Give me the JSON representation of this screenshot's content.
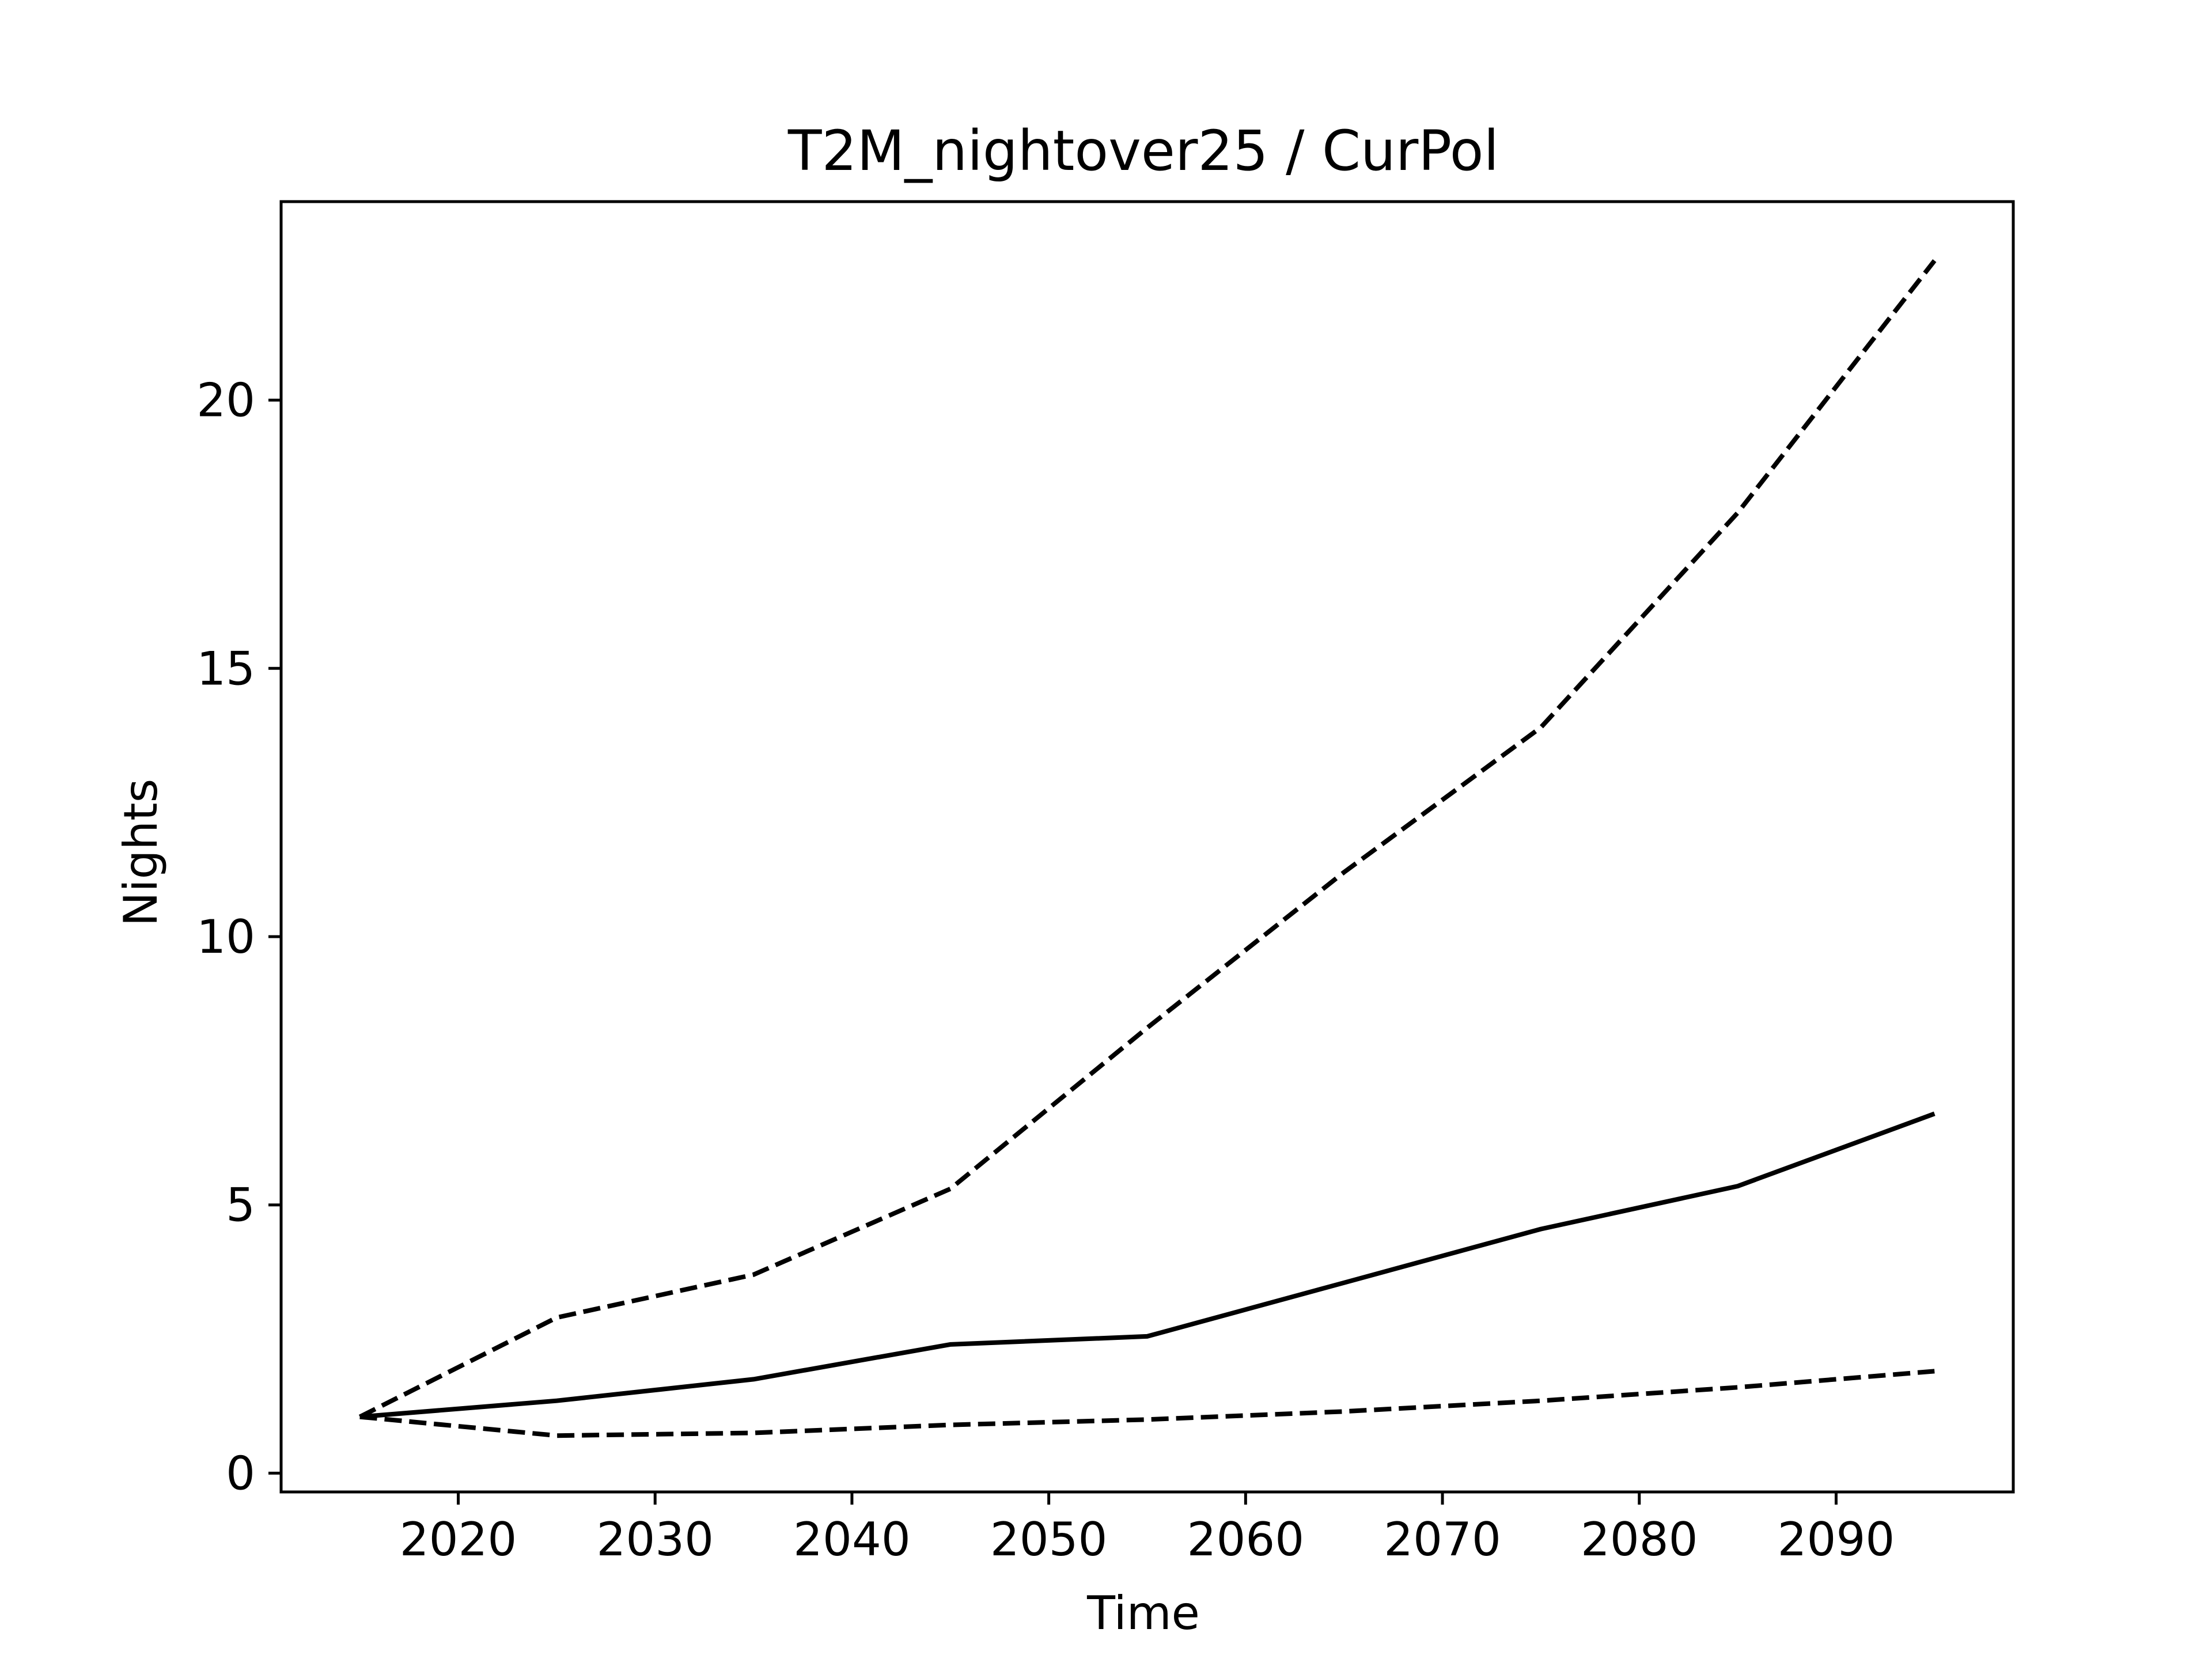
{
  "chart_data": {
    "type": "line",
    "title": "T2M_nightover25 / CurPol",
    "xlabel": "Time",
    "ylabel": "Nights",
    "x": [
      2015,
      2025,
      2035,
      2045,
      2055,
      2065,
      2075,
      2085,
      2095
    ],
    "series": [
      {
        "values": [
          1.05,
          1.35,
          1.75,
          2.4,
          2.55,
          3.55,
          4.55,
          5.35,
          6.7
        ],
        "style": "solid",
        "color": "#000000"
      },
      {
        "values": [
          1.05,
          2.9,
          3.7,
          5.3,
          8.3,
          11.2,
          13.9,
          17.9,
          22.6
        ],
        "style": "dashed",
        "color": "#000000"
      },
      {
        "values": [
          1.05,
          0.7,
          0.75,
          0.9,
          1.0,
          1.15,
          1.35,
          1.6,
          1.9
        ],
        "style": "dashed",
        "color": "#000000"
      }
    ],
    "xlim": [
      2011,
      2099
    ],
    "ylim": [
      -0.35,
      23.7
    ],
    "xticks": [
      2020,
      2030,
      2040,
      2050,
      2060,
      2070,
      2080,
      2090
    ],
    "yticks": [
      0,
      5,
      10,
      15,
      20
    ],
    "grid": false,
    "legend": "none"
  }
}
